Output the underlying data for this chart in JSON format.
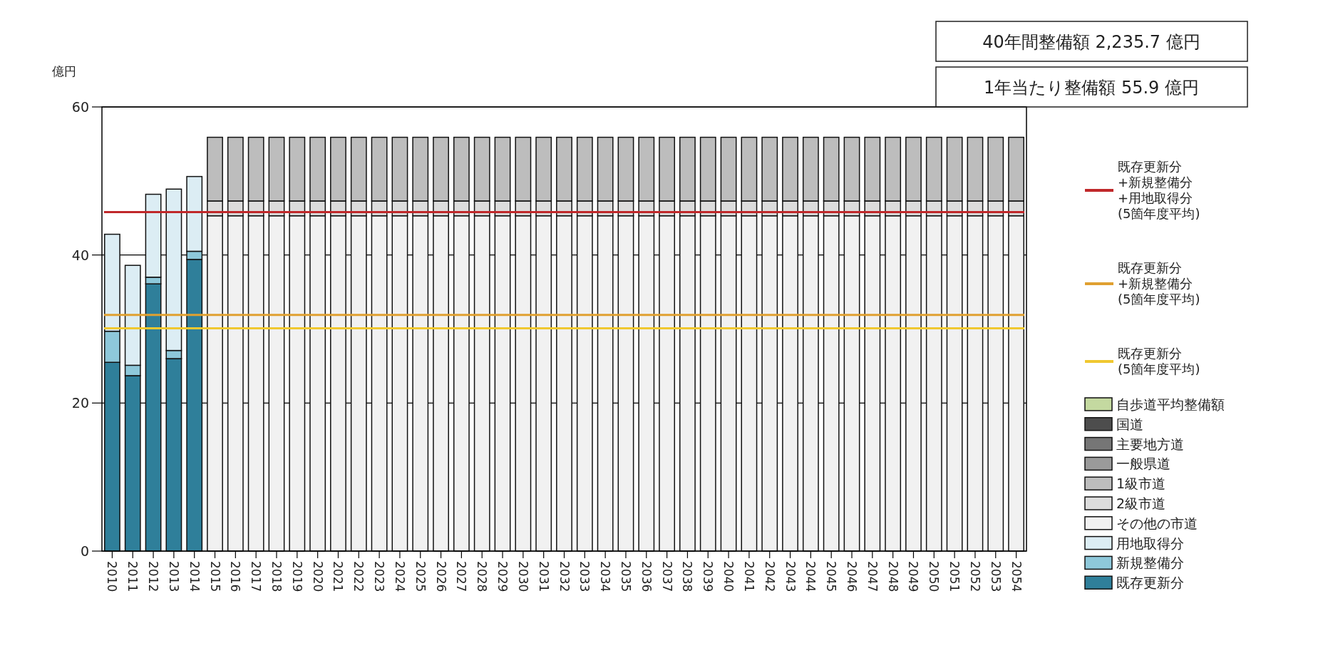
{
  "chart_data": {
    "type": "bar",
    "stacked": true,
    "ylabel": "億円",
    "ylim": [
      0,
      60
    ],
    "yticks": [
      0,
      20,
      40,
      60
    ],
    "grid": "y",
    "legend": "right",
    "categories": [
      "2010",
      "2011",
      "2012",
      "2013",
      "2014",
      "2015",
      "2016",
      "2017",
      "2018",
      "2019",
      "2020",
      "2021",
      "2022",
      "2023",
      "2024",
      "2025",
      "2026",
      "2027",
      "2028",
      "2029",
      "2030",
      "2031",
      "2032",
      "2033",
      "2034",
      "2035",
      "2036",
      "2037",
      "2038",
      "2039",
      "2040",
      "2041",
      "2042",
      "2043",
      "2044",
      "2045",
      "2046",
      "2047",
      "2048",
      "2049",
      "2050",
      "2051",
      "2052",
      "2053",
      "2054"
    ],
    "series": [
      {
        "name": "既存更新分",
        "color": "#2f7f9a",
        "values": [
          25.5,
          23.7,
          36.1,
          26.0,
          39.4,
          null,
          null,
          null,
          null,
          null,
          null,
          null,
          null,
          null,
          null,
          null,
          null,
          null,
          null,
          null,
          null,
          null,
          null,
          null,
          null,
          null,
          null,
          null,
          null,
          null,
          null,
          null,
          null,
          null,
          null,
          null,
          null,
          null,
          null,
          null,
          null,
          null,
          null,
          null,
          null
        ]
      },
      {
        "name": "新規整備分",
        "color": "#8ec8da",
        "values": [
          4.2,
          1.4,
          0.9,
          1.1,
          1.1,
          null,
          null,
          null,
          null,
          null,
          null,
          null,
          null,
          null,
          null,
          null,
          null,
          null,
          null,
          null,
          null,
          null,
          null,
          null,
          null,
          null,
          null,
          null,
          null,
          null,
          null,
          null,
          null,
          null,
          null,
          null,
          null,
          null,
          null,
          null,
          null,
          null,
          null,
          null,
          null
        ]
      },
      {
        "name": "用地取得分",
        "color": "#dcedf4",
        "values": [
          13.1,
          13.5,
          11.2,
          21.8,
          10.1,
          null,
          null,
          null,
          null,
          null,
          null,
          null,
          null,
          null,
          null,
          null,
          null,
          null,
          null,
          null,
          null,
          null,
          null,
          null,
          null,
          null,
          null,
          null,
          null,
          null,
          null,
          null,
          null,
          null,
          null,
          null,
          null,
          null,
          null,
          null,
          null,
          null,
          null,
          null,
          null
        ]
      },
      {
        "name": "その他の市道",
        "color": "#f1f1f1",
        "values": [
          null,
          null,
          null,
          null,
          null,
          45.3,
          45.3,
          45.3,
          45.3,
          45.3,
          45.3,
          45.3,
          45.3,
          45.3,
          45.3,
          45.3,
          45.3,
          45.3,
          45.3,
          45.3,
          45.3,
          45.3,
          45.3,
          45.3,
          45.3,
          45.3,
          45.3,
          45.3,
          45.3,
          45.3,
          45.3,
          45.3,
          45.3,
          45.3,
          45.3,
          45.3,
          45.3,
          45.3,
          45.3,
          45.3,
          45.3,
          45.3,
          45.3,
          45.3,
          45.3
        ]
      },
      {
        "name": "2級市道",
        "color": "#dcdcdc",
        "values": [
          null,
          null,
          null,
          null,
          null,
          2.0,
          2.0,
          2.0,
          2.0,
          2.0,
          2.0,
          2.0,
          2.0,
          2.0,
          2.0,
          2.0,
          2.0,
          2.0,
          2.0,
          2.0,
          2.0,
          2.0,
          2.0,
          2.0,
          2.0,
          2.0,
          2.0,
          2.0,
          2.0,
          2.0,
          2.0,
          2.0,
          2.0,
          2.0,
          2.0,
          2.0,
          2.0,
          2.0,
          2.0,
          2.0,
          2.0,
          2.0,
          2.0,
          2.0,
          2.0
        ]
      },
      {
        "name": "1級市道",
        "color": "#bdbdbd",
        "values": [
          null,
          null,
          null,
          null,
          null,
          8.6,
          8.6,
          8.6,
          8.6,
          8.6,
          8.6,
          8.6,
          8.6,
          8.6,
          8.6,
          8.6,
          8.6,
          8.6,
          8.6,
          8.6,
          8.6,
          8.6,
          8.6,
          8.6,
          8.6,
          8.6,
          8.6,
          8.6,
          8.6,
          8.6,
          8.6,
          8.6,
          8.6,
          8.6,
          8.6,
          8.6,
          8.6,
          8.6,
          8.6,
          8.6,
          8.6,
          8.6,
          8.6,
          8.6,
          8.6
        ]
      },
      {
        "name": "一般県道",
        "color": "#9a9a9a",
        "values": [
          null,
          null,
          null,
          null,
          null,
          null,
          null,
          null,
          null,
          null,
          null,
          null,
          null,
          null,
          null,
          null,
          null,
          null,
          null,
          null,
          null,
          null,
          null,
          null,
          null,
          null,
          null,
          null,
          null,
          null,
          null,
          null,
          null,
          null,
          null,
          null,
          null,
          null,
          null,
          null,
          null,
          null,
          null,
          null,
          null
        ]
      },
      {
        "name": "主要地方道",
        "color": "#767676",
        "values": [
          null,
          null,
          null,
          null,
          null,
          null,
          null,
          null,
          null,
          null,
          null,
          null,
          null,
          null,
          null,
          null,
          null,
          null,
          null,
          null,
          null,
          null,
          null,
          null,
          null,
          null,
          null,
          null,
          null,
          null,
          null,
          null,
          null,
          null,
          null,
          null,
          null,
          null,
          null,
          null,
          null,
          null,
          null,
          null,
          null
        ]
      },
      {
        "name": "国道",
        "color": "#4d4d4d",
        "values": [
          null,
          null,
          null,
          null,
          null,
          null,
          null,
          null,
          null,
          null,
          null,
          null,
          null,
          null,
          null,
          null,
          null,
          null,
          null,
          null,
          null,
          null,
          null,
          null,
          null,
          null,
          null,
          null,
          null,
          null,
          null,
          null,
          null,
          null,
          null,
          null,
          null,
          null,
          null,
          null,
          null,
          null,
          null,
          null,
          null
        ]
      },
      {
        "name": "自歩道平均整備額",
        "color": "#c4d9a0",
        "values": [
          null,
          null,
          null,
          null,
          null,
          null,
          null,
          null,
          null,
          null,
          null,
          null,
          null,
          null,
          null,
          null,
          null,
          null,
          null,
          null,
          null,
          null,
          null,
          null,
          null,
          null,
          null,
          null,
          null,
          null,
          null,
          null,
          null,
          null,
          null,
          null,
          null,
          null,
          null,
          null,
          null,
          null,
          null,
          null,
          null
        ]
      }
    ],
    "ref_lines": [
      {
        "axis": "y",
        "value": 45.8,
        "label": "既存更新分\n+新規整備分\n+用地取得分\n(5箇年度平均)",
        "color": "#c0282a"
      },
      {
        "axis": "y",
        "value": 31.9,
        "label": "既存更新分\n+新規整備分\n(5箇年度平均)",
        "color": "#e0a030"
      },
      {
        "axis": "y",
        "value": 30.1,
        "label": "既存更新分\n(5箇年度平均)",
        "color": "#f0c830"
      }
    ],
    "annotations": [
      "40年間整備額  2,235.7 億円",
      "1年当たり整備額  55.9 億円"
    ]
  }
}
